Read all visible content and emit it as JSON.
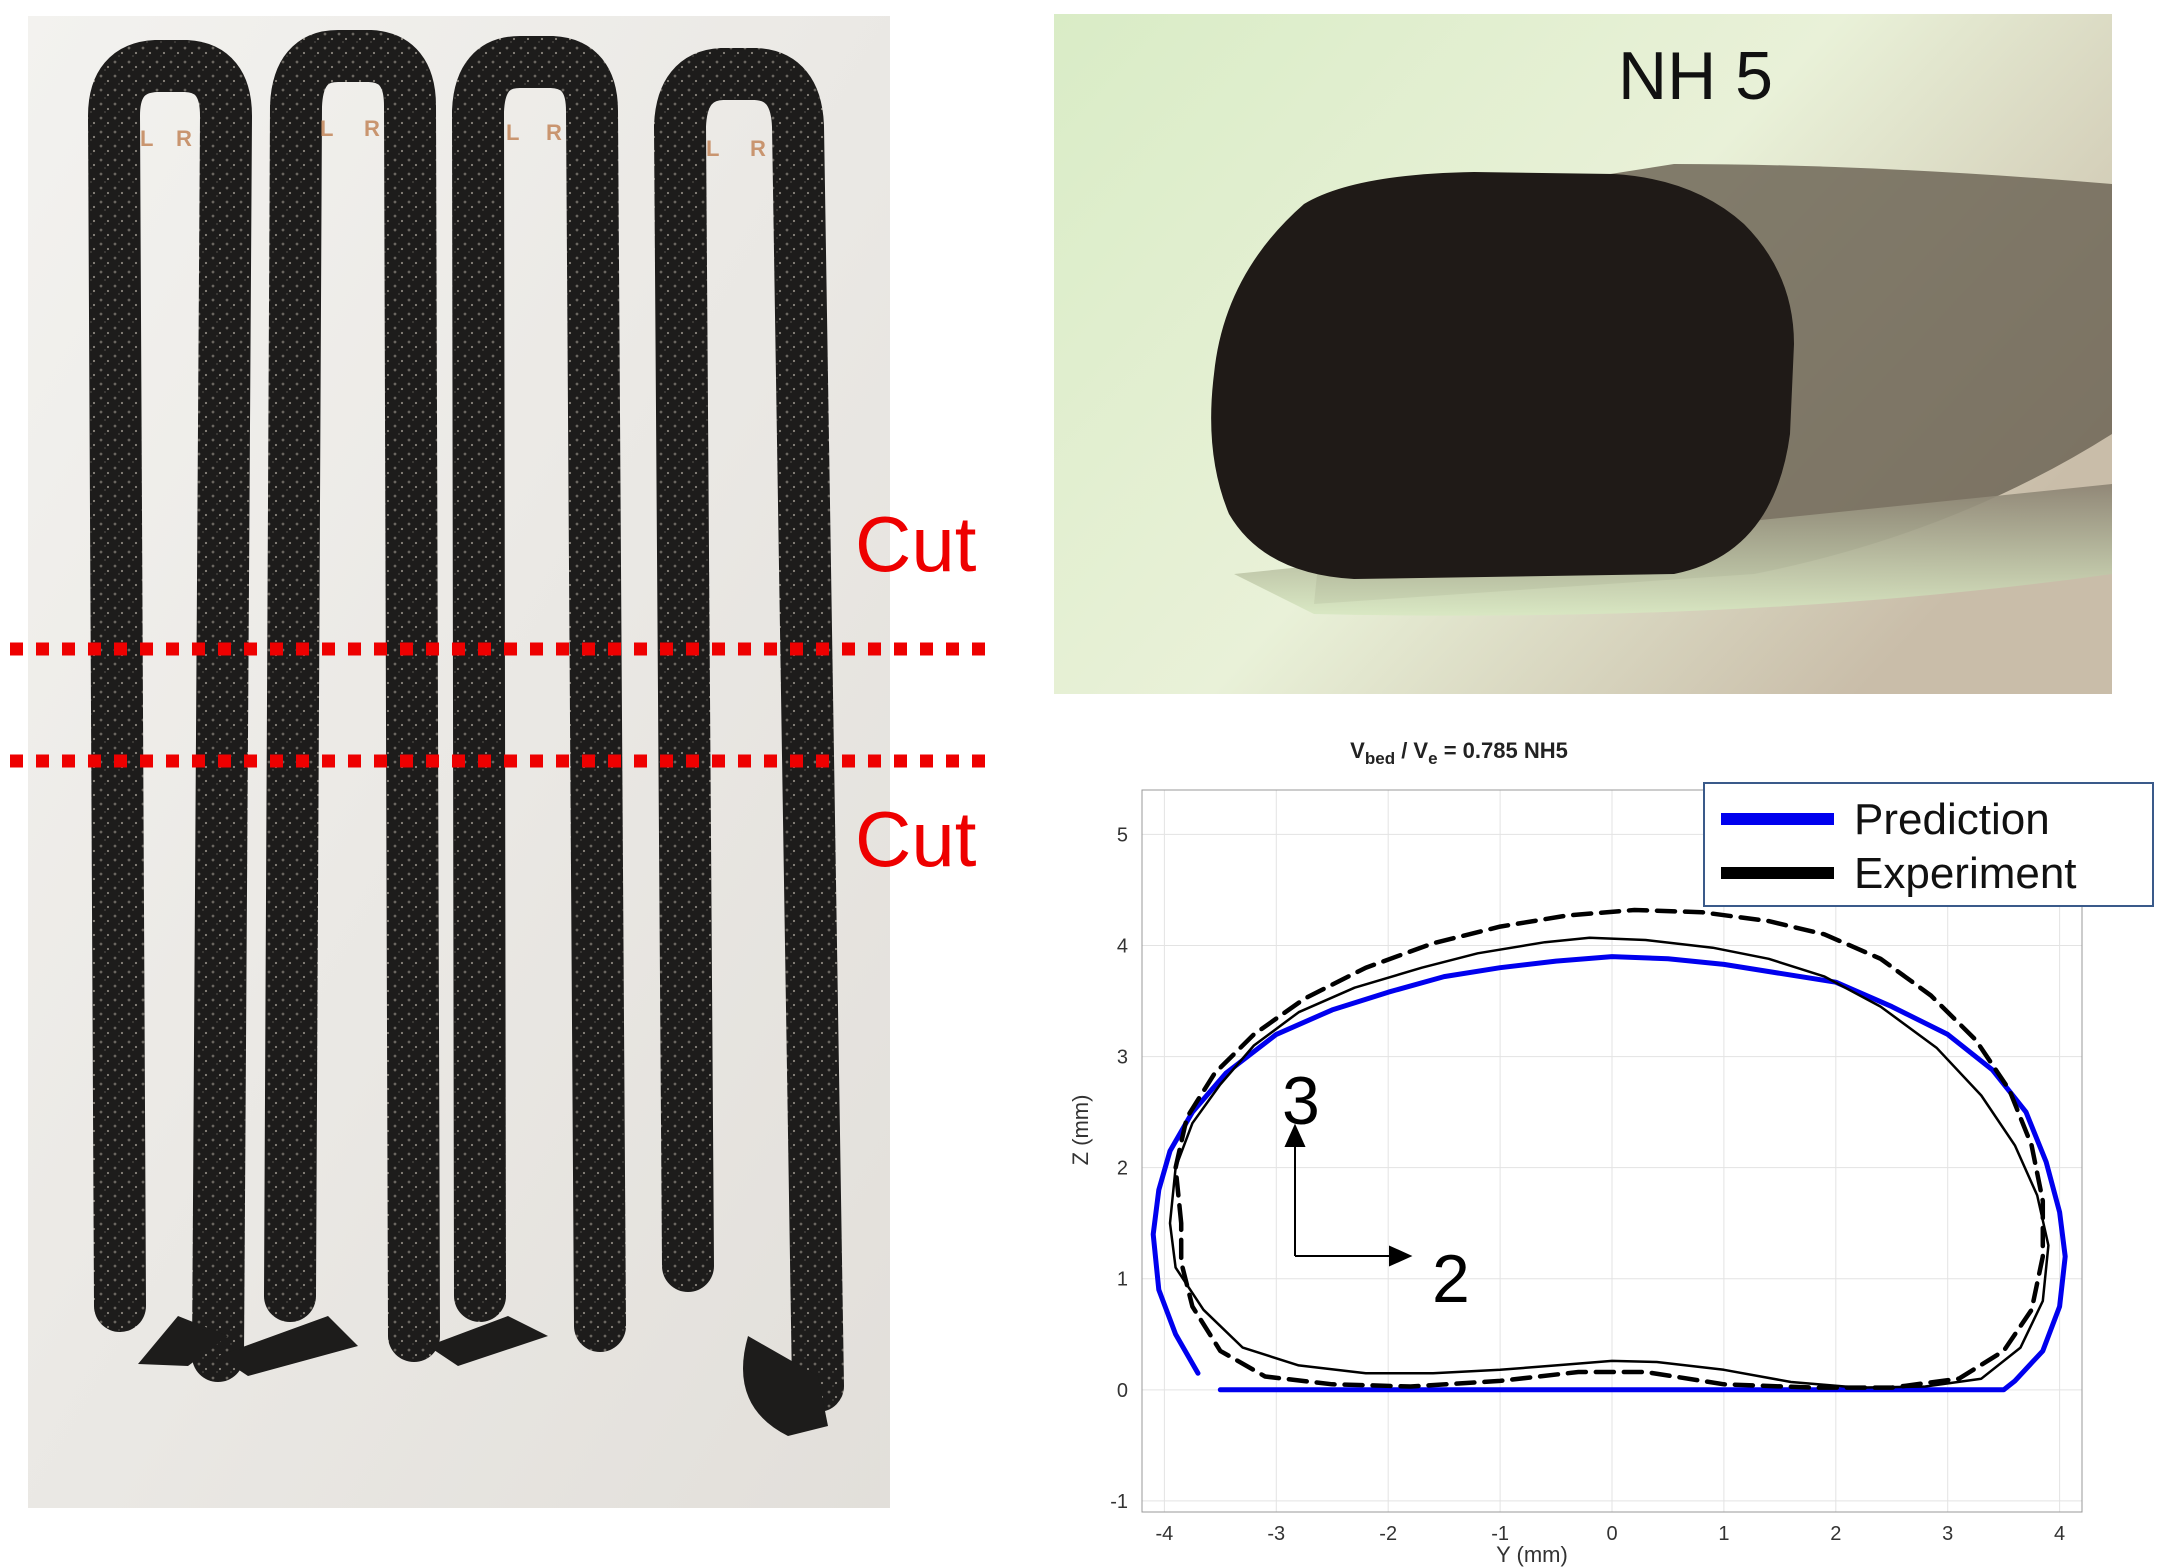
{
  "left_photo": {
    "cut_labels": [
      "Cut",
      "Cut"
    ],
    "cut_line_color": "#ee0000",
    "strand_labels": [
      "L",
      "R",
      "L",
      "R",
      "L",
      "R",
      "L",
      "R"
    ]
  },
  "right_photo": {
    "label": "NH 5"
  },
  "chart_data": {
    "type": "line",
    "title": {
      "v1": "V",
      "sub1": "bed",
      "mid": " / V",
      "sub2": "e",
      "rest": " = 0.785 NH5"
    },
    "xlabel": "Y (mm)",
    "ylabel": "Z (mm)",
    "xlim": [
      -4.2,
      4.2
    ],
    "ylim": [
      -1.1,
      5.4
    ],
    "xticks": [
      -4,
      -3,
      -2,
      -1,
      0,
      1,
      2,
      3,
      4
    ],
    "yticks": [
      -1,
      0,
      1,
      2,
      3,
      4,
      5
    ],
    "grid": true,
    "legend": {
      "position": "top-right",
      "entries": [
        "Prediction",
        "Experiment"
      ]
    },
    "annotations": {
      "axis_2": "2",
      "axis_3": "3"
    },
    "series": [
      {
        "name": "Prediction",
        "color": "#0000ee",
        "style": "solid",
        "points": [
          [
            -3.7,
            0.15
          ],
          [
            -3.9,
            0.5
          ],
          [
            -4.05,
            0.9
          ],
          [
            -4.1,
            1.4
          ],
          [
            -4.05,
            1.8
          ],
          [
            -3.95,
            2.15
          ],
          [
            -3.75,
            2.5
          ],
          [
            -3.45,
            2.85
          ],
          [
            -3.0,
            3.2
          ],
          [
            -2.5,
            3.42
          ],
          [
            -2.0,
            3.58
          ],
          [
            -1.5,
            3.72
          ],
          [
            -1.0,
            3.8
          ],
          [
            -0.5,
            3.86
          ],
          [
            0.0,
            3.9
          ],
          [
            0.5,
            3.88
          ],
          [
            1.0,
            3.83
          ],
          [
            1.5,
            3.75
          ],
          [
            2.0,
            3.67
          ],
          [
            2.5,
            3.45
          ],
          [
            3.0,
            3.2
          ],
          [
            3.4,
            2.88
          ],
          [
            3.7,
            2.5
          ],
          [
            3.88,
            2.05
          ],
          [
            4.0,
            1.6
          ],
          [
            4.05,
            1.2
          ],
          [
            4.0,
            0.75
          ],
          [
            3.85,
            0.35
          ],
          [
            3.6,
            0.08
          ],
          [
            3.5,
            0.0
          ],
          [
            3.0,
            0.0
          ],
          [
            2.0,
            0.0
          ],
          [
            1.0,
            0.0
          ],
          [
            0.0,
            0.0
          ],
          [
            -1.0,
            0.0
          ],
          [
            -2.0,
            0.0
          ],
          [
            -3.0,
            0.0
          ],
          [
            -3.5,
            0.0
          ]
        ]
      },
      {
        "name": "",
        "color": "#000000",
        "style": "solid",
        "points": [
          [
            -3.95,
            1.5
          ],
          [
            -3.9,
            2.0
          ],
          [
            -3.75,
            2.4
          ],
          [
            -3.5,
            2.75
          ],
          [
            -3.2,
            3.1
          ],
          [
            -2.8,
            3.4
          ],
          [
            -2.3,
            3.62
          ],
          [
            -1.7,
            3.8
          ],
          [
            -1.2,
            3.93
          ],
          [
            -0.6,
            4.03
          ],
          [
            -0.2,
            4.07
          ],
          [
            0.3,
            4.05
          ],
          [
            0.9,
            3.98
          ],
          [
            1.4,
            3.88
          ],
          [
            1.9,
            3.72
          ],
          [
            2.4,
            3.45
          ],
          [
            2.9,
            3.08
          ],
          [
            3.3,
            2.65
          ],
          [
            3.6,
            2.2
          ],
          [
            3.8,
            1.75
          ],
          [
            3.9,
            1.3
          ],
          [
            3.85,
            0.8
          ],
          [
            3.65,
            0.38
          ],
          [
            3.3,
            0.1
          ],
          [
            2.8,
            0.03
          ],
          [
            2.2,
            0.02
          ],
          [
            1.6,
            0.07
          ],
          [
            1.0,
            0.18
          ],
          [
            0.4,
            0.25
          ],
          [
            0.0,
            0.26
          ],
          [
            -0.5,
            0.22
          ],
          [
            -1.0,
            0.18
          ],
          [
            -1.6,
            0.15
          ],
          [
            -2.2,
            0.15
          ],
          [
            -2.8,
            0.22
          ],
          [
            -3.3,
            0.38
          ],
          [
            -3.65,
            0.72
          ],
          [
            -3.9,
            1.1
          ],
          [
            -3.95,
            1.5
          ]
        ]
      },
      {
        "name": "Experiment",
        "color": "#000000",
        "style": "dashed",
        "points": [
          [
            -3.85,
            1.5
          ],
          [
            -3.9,
            2.0
          ],
          [
            -3.8,
            2.45
          ],
          [
            -3.55,
            2.85
          ],
          [
            -3.2,
            3.2
          ],
          [
            -2.75,
            3.52
          ],
          [
            -2.2,
            3.8
          ],
          [
            -1.6,
            4.02
          ],
          [
            -1.0,
            4.17
          ],
          [
            -0.4,
            4.27
          ],
          [
            0.2,
            4.32
          ],
          [
            0.8,
            4.3
          ],
          [
            1.4,
            4.22
          ],
          [
            1.9,
            4.1
          ],
          [
            2.4,
            3.88
          ],
          [
            2.85,
            3.55
          ],
          [
            3.25,
            3.15
          ],
          [
            3.55,
            2.7
          ],
          [
            3.75,
            2.2
          ],
          [
            3.85,
            1.7
          ],
          [
            3.85,
            1.2
          ],
          [
            3.75,
            0.72
          ],
          [
            3.5,
            0.35
          ],
          [
            3.1,
            0.1
          ],
          [
            2.5,
            0.02
          ],
          [
            1.8,
            0.02
          ],
          [
            1.0,
            0.05
          ],
          [
            0.3,
            0.16
          ],
          [
            -0.3,
            0.16
          ],
          [
            -1.0,
            0.08
          ],
          [
            -1.8,
            0.03
          ],
          [
            -2.5,
            0.05
          ],
          [
            -3.1,
            0.12
          ],
          [
            -3.5,
            0.35
          ],
          [
            -3.75,
            0.75
          ],
          [
            -3.85,
            1.15
          ],
          [
            -3.85,
            1.5
          ]
        ]
      }
    ]
  }
}
